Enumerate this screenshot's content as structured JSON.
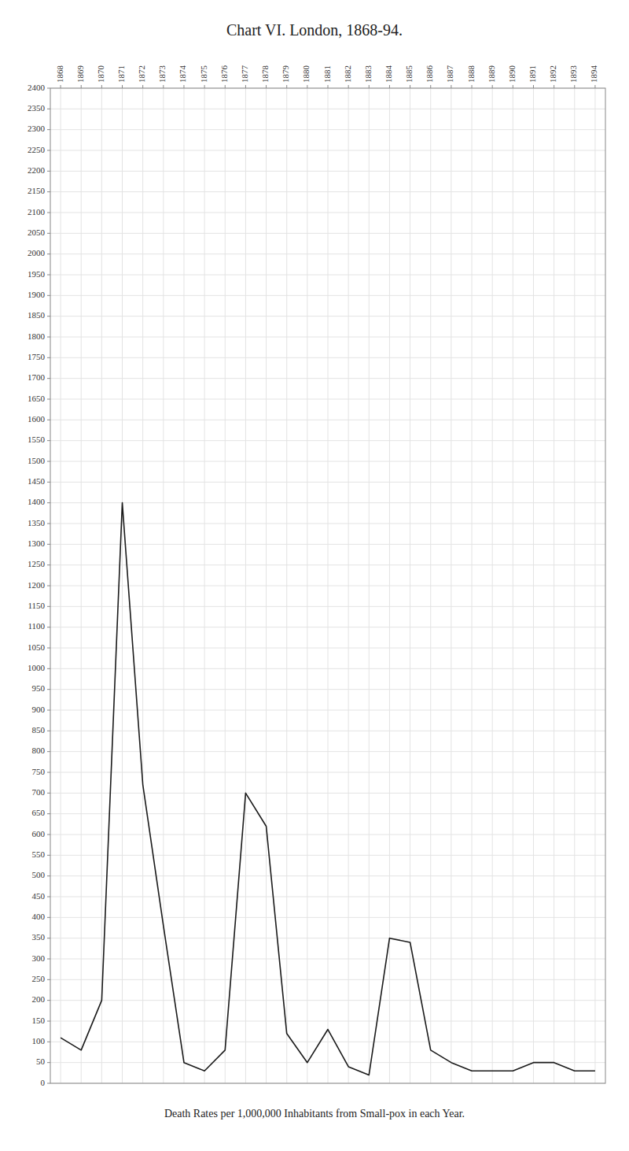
{
  "chart_data": {
    "type": "line",
    "title": "Chart VI.  London, 1868-94.",
    "subtitle": "Death Rates per 1,000,000 Inhabitants from Small-pox in each Year.",
    "x": [
      1868,
      1869,
      1870,
      1871,
      1872,
      1873,
      1874,
      1875,
      1876,
      1877,
      1878,
      1879,
      1880,
      1881,
      1882,
      1883,
      1884,
      1885,
      1886,
      1887,
      1888,
      1889,
      1890,
      1891,
      1892,
      1893,
      1894
    ],
    "values": [
      110,
      80,
      200,
      1400,
      720,
      380,
      50,
      30,
      80,
      700,
      620,
      120,
      50,
      130,
      40,
      20,
      350,
      340,
      80,
      50,
      30,
      30,
      30,
      50,
      50,
      30,
      30
    ],
    "color": "#1a1a1a",
    "xlim": [
      1867.5,
      1894.5
    ],
    "xticks": [
      1868,
      1869,
      1870,
      1871,
      1872,
      1873,
      1874,
      1875,
      1876,
      1877,
      1878,
      1879,
      1880,
      1881,
      1882,
      1883,
      1884,
      1885,
      1886,
      1887,
      1888,
      1889,
      1890,
      1891,
      1892,
      1893,
      1894
    ],
    "ylim": [
      0,
      2400
    ],
    "yticks": [
      0,
      50,
      100,
      150,
      200,
      250,
      300,
      350,
      400,
      450,
      500,
      550,
      600,
      650,
      700,
      750,
      800,
      850,
      900,
      950,
      1000,
      1050,
      1100,
      1150,
      1200,
      1250,
      1300,
      1350,
      1400,
      1450,
      1500,
      1550,
      1600,
      1650,
      1700,
      1750,
      1800,
      1850,
      1900,
      1950,
      2000,
      2050,
      2100,
      2150,
      2200,
      2250,
      2300,
      2350,
      2400
    ],
    "grid": true
  }
}
